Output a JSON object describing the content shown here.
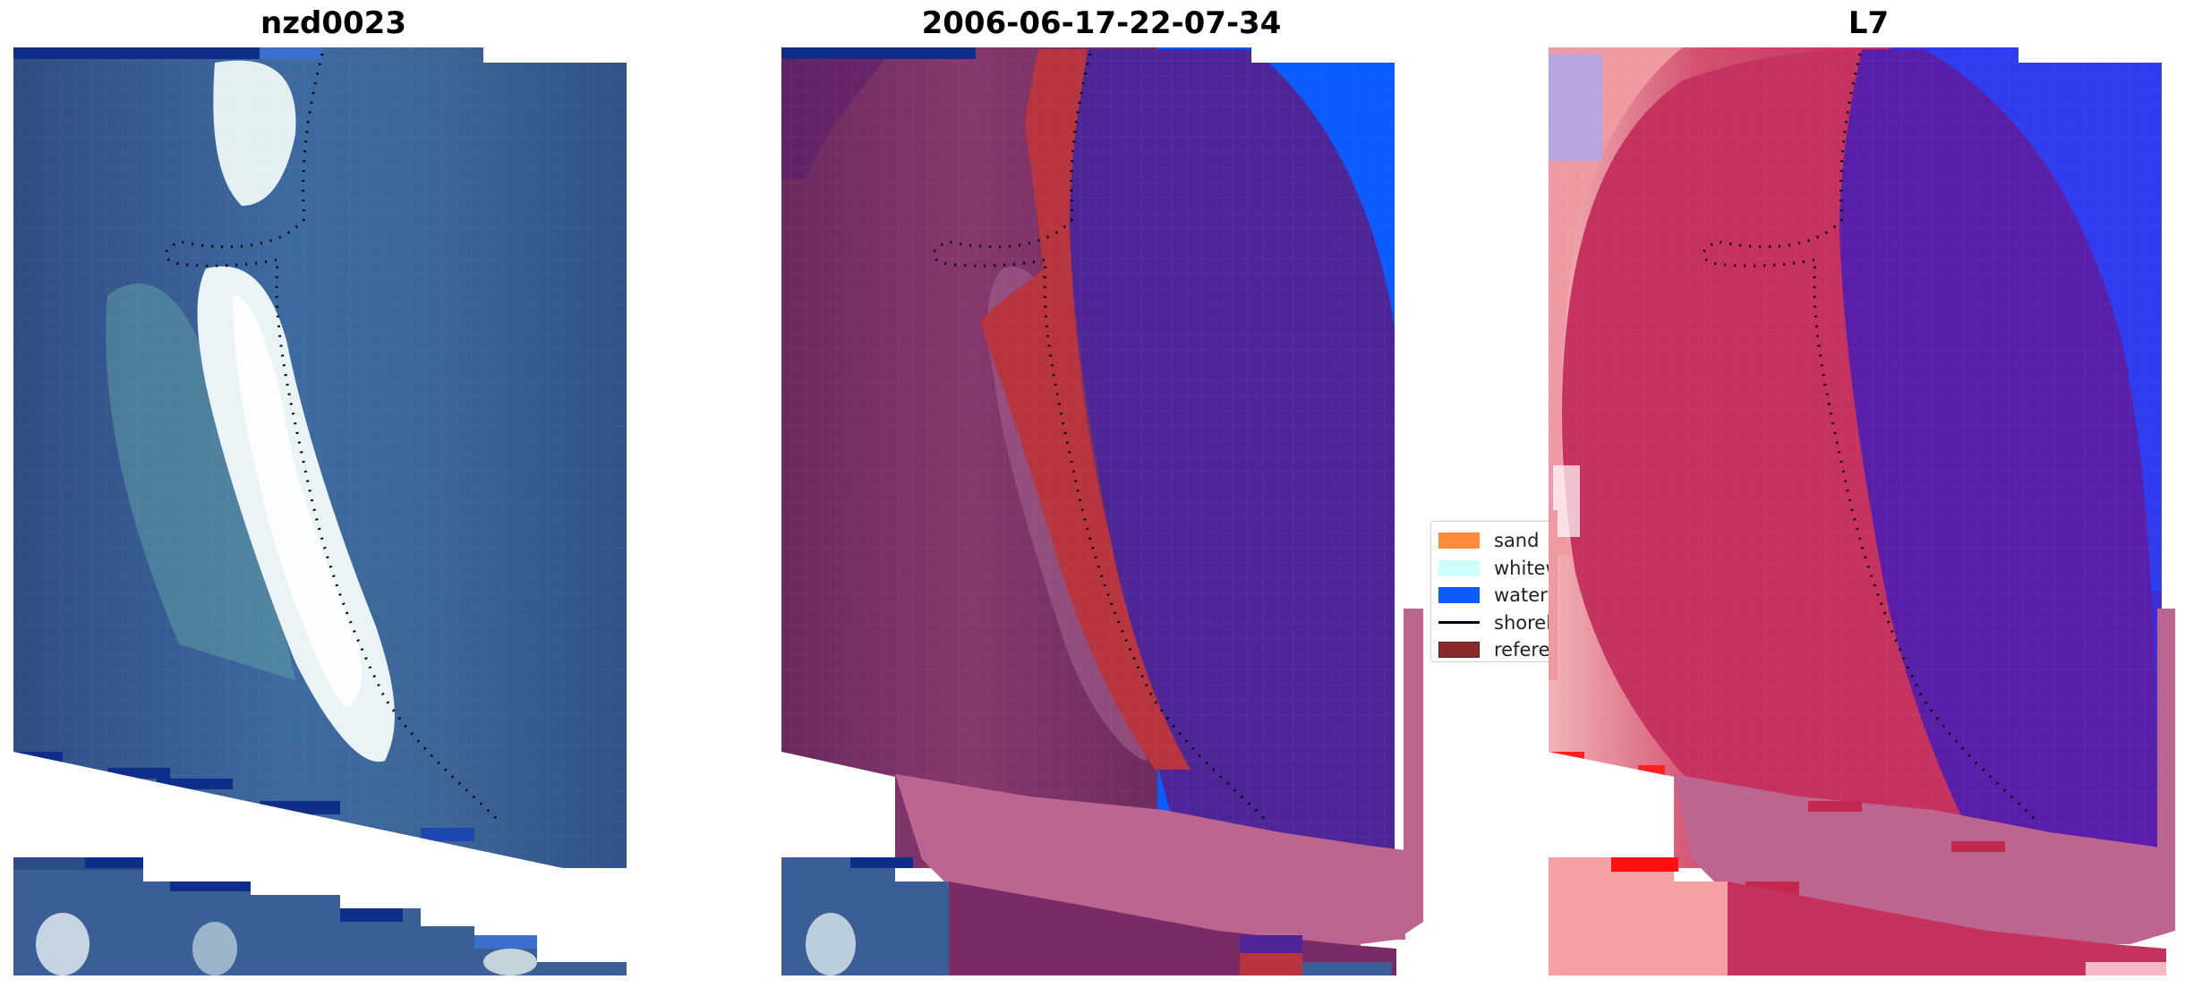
{
  "panels": [
    {
      "title": "nzd0023",
      "kind": "rgb"
    },
    {
      "title": "2006-06-17-22-07-34",
      "kind": "classified"
    },
    {
      "title": "L7",
      "kind": "index"
    }
  ],
  "legend": {
    "items": [
      {
        "label": "sand",
        "color": "#ff8c3a",
        "kind": "patch"
      },
      {
        "label": "whitewater",
        "color": "#cafffb",
        "kind": "patch"
      },
      {
        "label": "water",
        "color": "#0a5cff",
        "kind": "patch"
      },
      {
        "label": "shoreline",
        "color": "#000000",
        "kind": "line"
      },
      {
        "label": "reference shoreline",
        "color": "#8b2a2a",
        "kind": "patch"
      }
    ]
  },
  "colors": {
    "water_deep": "#2e4f86",
    "sand_bright": "#e8f2f4",
    "class_sand_overlay": "#b8343e",
    "class_water_overlay": "#4e2597",
    "class_buffer": "#bc6590",
    "class_water": "#0a5cff",
    "index_land": "#c5325e",
    "index_water": "#5a1fa8",
    "index_blue": "#2f3cf0",
    "index_red": "#f4a0a4"
  }
}
